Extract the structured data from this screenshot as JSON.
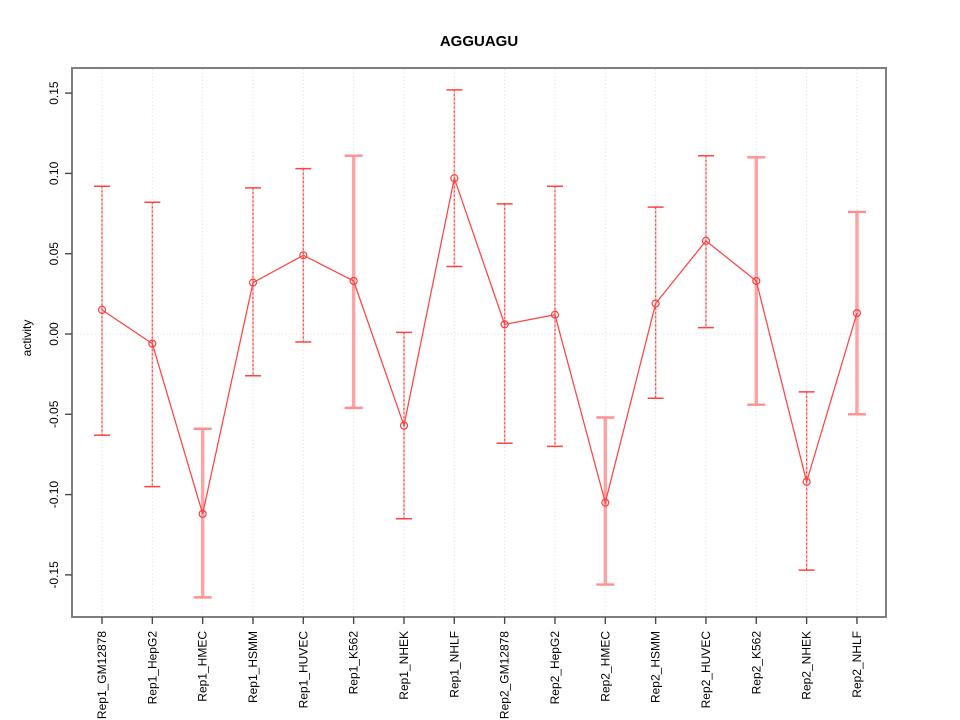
{
  "colors": {
    "series_red": "#ff4343",
    "marker_red": "#ff3d3d",
    "pale_red": "#ffa2a2",
    "pale_red_thin": "#ffb4b4",
    "grid": "#dadada",
    "box_border": "#7f7f7f",
    "tick": "#4a4a4a",
    "text": "#000000",
    "background": "#ffffff"
  },
  "chart_data": {
    "type": "line",
    "title": "AGGUAGU",
    "ylabel": "activity",
    "xlabel": "",
    "legend": "none",
    "grid": "dotted vertical gridline per category, dotted horizontal line at zero",
    "categories": [
      "Rep1_GM12878",
      "Rep1_HepG2",
      "Rep1_HMEC",
      "Rep1_HSMM",
      "Rep1_HUVEC",
      "Rep1_K562",
      "Rep1_NHEK",
      "Rep1_NHLF",
      "Rep2_GM12878",
      "Rep2_HepG2",
      "Rep2_HMEC",
      "Rep2_HSMM",
      "Rep2_HUVEC",
      "Rep2_K562",
      "Rep2_NHEK",
      "Rep2_NHLF"
    ],
    "series": [
      {
        "name": "activity",
        "values": [
          0.015,
          -0.006,
          -0.112,
          0.032,
          0.049,
          0.033,
          -0.057,
          0.097,
          0.006,
          0.012,
          -0.105,
          0.019,
          0.058,
          0.033,
          -0.092,
          0.013
        ],
        "error_low": [
          -0.063,
          -0.095,
          -0.164,
          -0.026,
          -0.005,
          -0.046,
          -0.115,
          0.042,
          -0.068,
          -0.07,
          -0.156,
          -0.04,
          0.004,
          -0.044,
          -0.147,
          -0.05
        ],
        "error_high": [
          0.092,
          0.082,
          -0.059,
          0.091,
          0.103,
          0.111,
          0.001,
          0.152,
          0.081,
          0.092,
          -0.052,
          0.079,
          0.111,
          0.11,
          -0.036,
          0.076
        ],
        "thick_error_bar": [
          false,
          false,
          true,
          false,
          false,
          true,
          false,
          false,
          false,
          false,
          true,
          false,
          false,
          true,
          false,
          true
        ]
      }
    ],
    "yticks": {
      "values": [
        0.15,
        0.1,
        0.05,
        0.0,
        -0.05,
        -0.1,
        -0.15
      ],
      "labels": [
        "0.15",
        "0.10",
        "0.05",
        "0.00",
        "-0.05",
        "-0.10",
        "-0.15"
      ]
    },
    "ylim": [
      -0.176,
      0.166
    ],
    "marker": "open-circle"
  }
}
